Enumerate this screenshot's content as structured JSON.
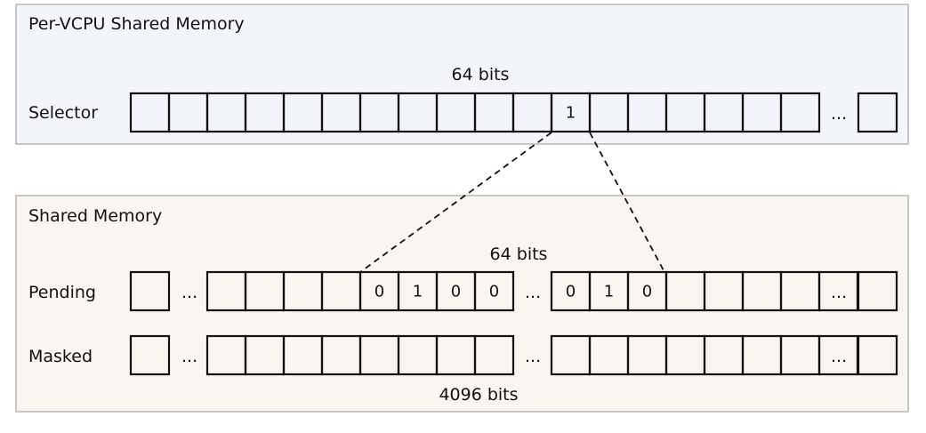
{
  "colors": {
    "top_panel_fill": "#f2f6fb",
    "bottom_panel_fill": "#f9f5f1",
    "panel_border": "#b7b7b7",
    "cell_border": "#111111"
  },
  "top_panel": {
    "title": "Per-VCPU Shared Memory",
    "width_label": "64 bits",
    "selector": {
      "label": "Selector",
      "bits": [
        "",
        "",
        "",
        "",
        "",
        "",
        "",
        "",
        "",
        "",
        "",
        "1",
        "",
        "",
        "",
        "",
        "",
        ""
      ],
      "ellipsis": "...",
      "last_bit": ""
    }
  },
  "bottom_panel": {
    "title": "Shared Memory",
    "width_label": "64 bits",
    "size_label": "4096 bits",
    "pending": {
      "label": "Pending",
      "first_bit": "",
      "ellipsis": "...",
      "group_a": [
        "",
        "",
        "",
        "",
        "0",
        "1",
        "0",
        "0"
      ],
      "group_b": [
        "0",
        "1",
        "0",
        "",
        "",
        "",
        "",
        ""
      ],
      "last_bit": ""
    },
    "masked": {
      "label": "Masked",
      "first_bit": "",
      "ellipsis": "...",
      "group_a": [
        "",
        "",
        "",
        "",
        "",
        "",
        "",
        ""
      ],
      "group_b": [
        "",
        "",
        "",
        "",
        "",
        "",
        "",
        ""
      ],
      "last_bit": ""
    }
  }
}
